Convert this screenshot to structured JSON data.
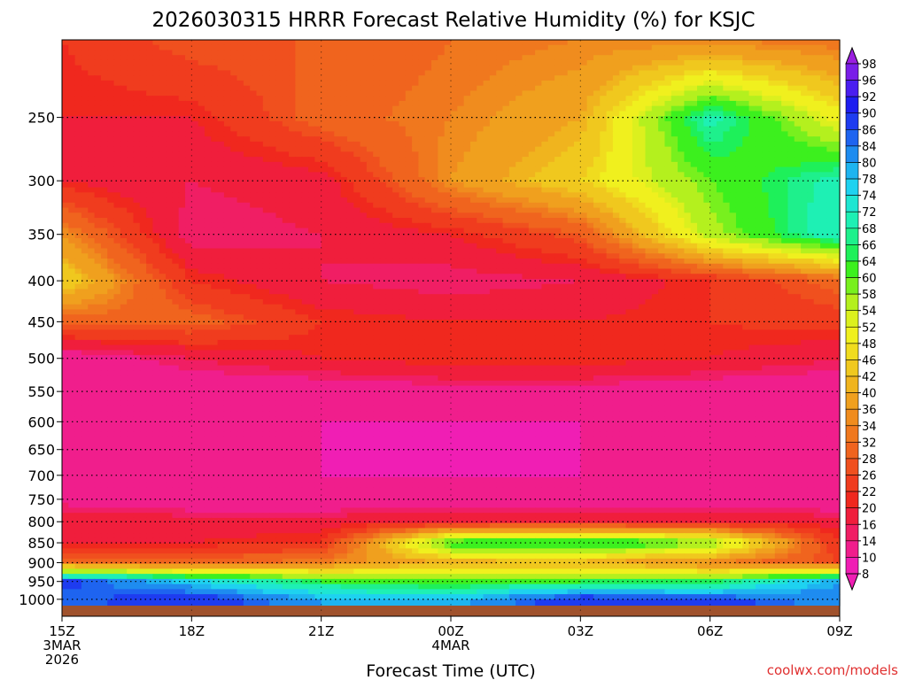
{
  "title": "2026030315 HRRR Forecast Relative Humidity (%) for KSJC",
  "credit": "coolwx.com/models",
  "colors": {
    "credit": "#e03030",
    "ground": "#a0522d",
    "grid": "#000000"
  },
  "chart_data": {
    "type": "heatmap",
    "title": "2026030315 HRRR Forecast Relative Humidity (%) for KSJC",
    "xlabel": "Forecast Time (UTC)",
    "ylabel": "",
    "x_ticks": [
      "15Z",
      "18Z",
      "21Z",
      "00Z",
      "03Z",
      "06Z",
      "09Z"
    ],
    "x_tick_dates": {
      "15Z": [
        "3MAR",
        "2026"
      ],
      "00Z": [
        "4MAR"
      ]
    },
    "xlim_hours": [
      0,
      18
    ],
    "y_ticks": [
      250,
      300,
      350,
      400,
      450,
      500,
      550,
      600,
      650,
      700,
      750,
      800,
      850,
      900,
      950,
      1000
    ],
    "ylim": [
      200,
      1050
    ],
    "y_scale": "log-pressure, reversed",
    "grid": true,
    "colorbar_levels": [
      98,
      96,
      92,
      90,
      86,
      84,
      80,
      78,
      74,
      72,
      68,
      66,
      64,
      60,
      58,
      54,
      52,
      48,
      46,
      42,
      40,
      36,
      34,
      32,
      28,
      26,
      22,
      20,
      16,
      14,
      10,
      8
    ],
    "colorbar_colors": [
      "#9b1fe0",
      "#7a1ee8",
      "#4a1ef0",
      "#1e1ef0",
      "#1e3cf0",
      "#1e64f0",
      "#1e8cf0",
      "#1eb4f0",
      "#1ed2f0",
      "#1ee6d2",
      "#1ef0b4",
      "#1ef08c",
      "#1ef05a",
      "#3cf01e",
      "#78f01e",
      "#b4f01e",
      "#dcf01e",
      "#f0f01e",
      "#f0dc1e",
      "#f0c81e",
      "#f0b41e",
      "#f0a01e",
      "#f08c1e",
      "#f0781e",
      "#f0641e",
      "#f0501e",
      "#f03c1e",
      "#f0281e",
      "#f01e3c",
      "#f01e64",
      "#f01e8c",
      "#f01eb4"
    ],
    "sample_hours": [
      0,
      3,
      6,
      9,
      12,
      15,
      18
    ],
    "sample_pressures": [
      200,
      250,
      300,
      350,
      400,
      450,
      500,
      550,
      600,
      650,
      700,
      750,
      800,
      850,
      900,
      950,
      1000
    ],
    "rh_values": [
      [
        22,
        28,
        28,
        32,
        34,
        34,
        32
      ],
      [
        20,
        20,
        30,
        34,
        40,
        70,
        50
      ],
      [
        20,
        16,
        18,
        36,
        46,
        60,
        70
      ],
      [
        36,
        14,
        16,
        20,
        28,
        56,
        72
      ],
      [
        46,
        22,
        16,
        14,
        16,
        22,
        30
      ],
      [
        30,
        30,
        22,
        20,
        20,
        22,
        24
      ],
      [
        10,
        16,
        20,
        22,
        22,
        20,
        16
      ],
      [
        10,
        10,
        10,
        12,
        12,
        10,
        10
      ],
      [
        10,
        10,
        10,
        10,
        10,
        10,
        10
      ],
      [
        10,
        10,
        10,
        8,
        10,
        10,
        10
      ],
      [
        10,
        10,
        10,
        10,
        10,
        10,
        10
      ],
      [
        12,
        10,
        10,
        10,
        10,
        10,
        10
      ],
      [
        20,
        18,
        18,
        20,
        20,
        20,
        18
      ],
      [
        20,
        20,
        22,
        64,
        68,
        60,
        22
      ],
      [
        32,
        30,
        34,
        40,
        40,
        34,
        26
      ],
      [
        88,
        76,
        64,
        60,
        64,
        64,
        80
      ],
      [
        84,
        90,
        80,
        78,
        90,
        88,
        82
      ]
    ]
  }
}
